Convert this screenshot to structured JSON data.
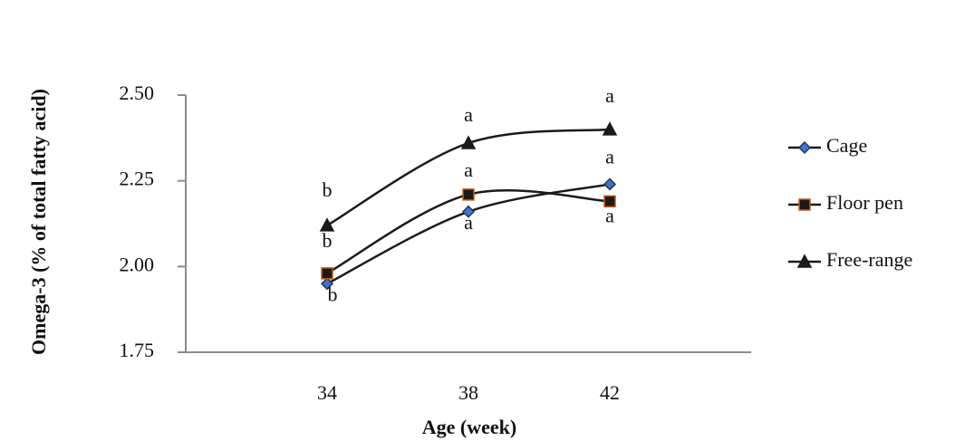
{
  "chart_data": {
    "type": "line",
    "x_label": "Age (week)",
    "y_label": "Omega-3 (% of total fatty acid)",
    "categories": [
      null,
      "34",
      "38",
      "42",
      null
    ],
    "series": [
      {
        "name": "Cage",
        "color": "#1a1a1a",
        "marker": "diamond",
        "marker_fill": "#4472c4",
        "marker_stroke": "#1f3864",
        "values": [
          null,
          1.95,
          2.16,
          2.24,
          null
        ],
        "letters": [
          null,
          "b",
          "a",
          "a",
          null
        ]
      },
      {
        "name": "Floor pen",
        "color": "#1a1a1a",
        "marker": "square",
        "marker_fill": "#1a1a1a",
        "marker_stroke": "#c55a11",
        "values": [
          null,
          1.98,
          2.21,
          2.19,
          null
        ],
        "letters": [
          null,
          "b",
          "a",
          "a",
          null
        ]
      },
      {
        "name": "Free-range",
        "color": "#1a1a1a",
        "marker": "triangle",
        "marker_fill": "#1a1a1a",
        "marker_stroke": "#1a1a1a",
        "values": [
          null,
          2.12,
          2.36,
          2.4,
          null
        ],
        "letters": [
          null,
          "b",
          "a",
          "a",
          null
        ]
      }
    ],
    "ylim": [
      1.75,
      2.5
    ],
    "yticks": [
      {
        "value": 1.75,
        "label": "1.75"
      },
      {
        "value": 2.0,
        "label": "2.00"
      },
      {
        "value": 2.25,
        "label": "2.25"
      },
      {
        "value": 2.5,
        "label": "2.50"
      }
    ],
    "grid": false,
    "legend": "right"
  }
}
